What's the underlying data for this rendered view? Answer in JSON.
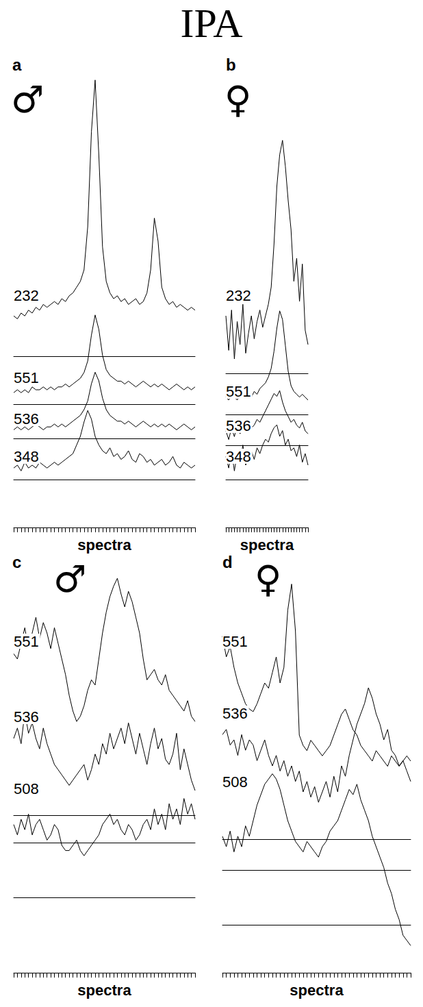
{
  "title": "IPA",
  "chart_data": [
    {
      "type": "line",
      "title": "a",
      "subtitle": "♂",
      "x_label": "spectra",
      "x": [
        0,
        1,
        2,
        3,
        4,
        5,
        6,
        7,
        8,
        9,
        10,
        11,
        12,
        13,
        14,
        15,
        16,
        17,
        18,
        19,
        20,
        21,
        22,
        23,
        24,
        25,
        26,
        27,
        28,
        29,
        30,
        31,
        32,
        33,
        34,
        35,
        36,
        37,
        38,
        39,
        40,
        41,
        42,
        43,
        44,
        45,
        46,
        47,
        48,
        49
      ],
      "xlim": [
        0,
        49
      ],
      "xticks": [
        0,
        1,
        2,
        3,
        4,
        5,
        6,
        7,
        8,
        9,
        10,
        11,
        12,
        13,
        14,
        15,
        16,
        17,
        18,
        19,
        20,
        21,
        22,
        23,
        24,
        25,
        26,
        27,
        28,
        29,
        30,
        31,
        32,
        33,
        34,
        35,
        36,
        37,
        38,
        39,
        40,
        41,
        42,
        43,
        44,
        45,
        46,
        47,
        48,
        49
      ],
      "ylim": [
        0,
        100
      ],
      "tick_labels": false,
      "grid": false,
      "color": "#000000",
      "series": [
        {
          "name": "232",
          "values": [
            14,
            13,
            15,
            14,
            16,
            15,
            17,
            16,
            18,
            17,
            18,
            19,
            18,
            20,
            19,
            21,
            22,
            24,
            26,
            30,
            45,
            78,
            96,
            70,
            38,
            26,
            22,
            20,
            21,
            19,
            20,
            18,
            19,
            20,
            18,
            19,
            22,
            30,
            48,
            40,
            24,
            20,
            18,
            19,
            17,
            18,
            17,
            16,
            17,
            16
          ]
        },
        {
          "name": "551",
          "values": [
            4,
            5,
            4,
            5,
            4,
            6,
            5,
            5,
            6,
            5,
            6,
            5,
            6,
            6,
            7,
            6,
            7,
            8,
            9,
            11,
            15,
            24,
            31,
            26,
            17,
            12,
            10,
            9,
            8,
            8,
            7,
            8,
            7,
            6,
            7,
            8,
            7,
            6,
            7,
            6,
            7,
            6,
            5,
            6,
            7,
            6,
            5,
            6,
            5,
            6
          ]
        },
        {
          "name": "536",
          "values": [
            3,
            4,
            3,
            4,
            3,
            4,
            5,
            4,
            3,
            4,
            4,
            5,
            4,
            5,
            4,
            5,
            6,
            7,
            8,
            10,
            13,
            19,
            23,
            20,
            14,
            10,
            8,
            7,
            6,
            6,
            5,
            6,
            5,
            4,
            5,
            6,
            5,
            4,
            5,
            4,
            5,
            4,
            5,
            4,
            3,
            4,
            5,
            4,
            3,
            4
          ]
        },
        {
          "name": "348",
          "values": [
            4,
            5,
            3,
            6,
            4,
            5,
            4,
            6,
            5,
            4,
            5,
            6,
            5,
            6,
            7,
            8,
            9,
            12,
            15,
            20,
            24,
            21,
            15,
            12,
            10,
            9,
            11,
            8,
            9,
            7,
            8,
            10,
            7,
            6,
            9,
            8,
            6,
            7,
            5,
            6,
            7,
            5,
            6,
            8,
            5,
            4,
            6,
            5,
            4,
            5
          ]
        }
      ]
    },
    {
      "type": "line",
      "title": "b",
      "subtitle": "♀",
      "x_label": "spectra",
      "x": [
        0,
        1,
        2,
        3,
        4,
        5,
        6,
        7,
        8,
        9,
        10,
        11,
        12,
        13,
        14,
        15,
        16,
        17,
        18,
        19,
        20,
        21,
        22,
        23,
        24,
        25,
        26,
        27,
        28,
        29
      ],
      "xlim": [
        0,
        29
      ],
      "xticks": [
        0,
        1,
        2,
        3,
        4,
        5,
        6,
        7,
        8,
        9,
        10,
        11,
        12,
        13,
        14,
        15,
        16,
        17,
        18,
        19,
        20,
        21,
        22,
        23,
        24,
        25,
        26,
        27,
        28,
        29
      ],
      "ylim": [
        0,
        100
      ],
      "tick_labels": false,
      "grid": false,
      "color": "#000000",
      "series": [
        {
          "name": "232",
          "values": [
            20,
            8,
            22,
            5,
            18,
            10,
            24,
            7,
            14,
            20,
            12,
            18,
            22,
            16,
            20,
            24,
            30,
            45,
            65,
            76,
            81,
            72,
            60,
            50,
            32,
            40,
            25,
            38,
            15,
            10
          ]
        },
        {
          "name": "551",
          "values": [
            6,
            5,
            7,
            6,
            5,
            7,
            6,
            8,
            7,
            6,
            8,
            7,
            9,
            10,
            11,
            13,
            16,
            22,
            30,
            36,
            33,
            24,
            15,
            10,
            8,
            7,
            6,
            7,
            6,
            5
          ]
        },
        {
          "name": "536",
          "values": [
            5,
            2,
            6,
            3,
            7,
            4,
            6,
            5,
            8,
            6,
            7,
            9,
            8,
            10,
            12,
            14,
            16,
            18,
            17,
            19,
            15,
            12,
            10,
            8,
            9,
            7,
            6,
            8,
            5,
            4
          ]
        },
        {
          "name": "348",
          "values": [
            8,
            4,
            10,
            3,
            9,
            6,
            12,
            5,
            8,
            10,
            7,
            11,
            9,
            12,
            14,
            13,
            16,
            18,
            19,
            15,
            17,
            12,
            14,
            10,
            11,
            8,
            12,
            6,
            9,
            5
          ]
        }
      ]
    },
    {
      "type": "line",
      "title": "c",
      "subtitle": "♂",
      "x_label": "spectra",
      "x": [
        0,
        1,
        2,
        3,
        4,
        5,
        6,
        7,
        8,
        9,
        10,
        11,
        12,
        13,
        14,
        15,
        16,
        17,
        18,
        19,
        20,
        21,
        22,
        23,
        24,
        25,
        26,
        27,
        28,
        29,
        30,
        31,
        32,
        33,
        34,
        35,
        36,
        37,
        38,
        39,
        40,
        41,
        42,
        43,
        44,
        45,
        46,
        47,
        48,
        49
      ],
      "xlim": [
        0,
        49
      ],
      "xticks": [
        0,
        1,
        2,
        3,
        4,
        5,
        6,
        7,
        8,
        9,
        10,
        11,
        12,
        13,
        14,
        15,
        16,
        17,
        18,
        19,
        20,
        21,
        22,
        23,
        24,
        25,
        26,
        27,
        28,
        29,
        30,
        31,
        32,
        33,
        34,
        35,
        36,
        37,
        38,
        39,
        40,
        41,
        42,
        43,
        44,
        45,
        46,
        47,
        48,
        49
      ],
      "ylim": [
        0,
        100
      ],
      "tick_labels": false,
      "grid": false,
      "color": "#000000",
      "series": [
        {
          "name": "551",
          "values": [
            62,
            60,
            66,
            72,
            64,
            70,
            76,
            68,
            74,
            70,
            64,
            72,
            66,
            60,
            54,
            46,
            40,
            36,
            38,
            42,
            48,
            52,
            50,
            60,
            70,
            78,
            84,
            88,
            91,
            85,
            80,
            86,
            82,
            76,
            70,
            60,
            52,
            54,
            56,
            52,
            50,
            54,
            48,
            46,
            44,
            42,
            40,
            44,
            38,
            36
          ]
        },
        {
          "name": "536",
          "values": [
            40,
            44,
            38,
            50,
            42,
            46,
            40,
            36,
            44,
            38,
            34,
            30,
            28,
            26,
            24,
            22,
            24,
            26,
            28,
            30,
            24,
            28,
            34,
            30,
            38,
            34,
            42,
            36,
            40,
            44,
            38,
            46,
            40,
            34,
            42,
            36,
            30,
            38,
            44,
            36,
            40,
            32,
            30,
            34,
            42,
            28,
            36,
            30,
            24,
            20
          ]
        },
        {
          "name": "508",
          "values": [
            28,
            24,
            30,
            26,
            32,
            24,
            28,
            30,
            26,
            22,
            24,
            28,
            26,
            20,
            18,
            18,
            20,
            22,
            18,
            16,
            18,
            20,
            22,
            24,
            28,
            30,
            32,
            28,
            30,
            26,
            24,
            28,
            26,
            22,
            24,
            28,
            30,
            26,
            34,
            28,
            32,
            26,
            36,
            30,
            34,
            28,
            38,
            32,
            36,
            30
          ]
        }
      ]
    },
    {
      "type": "line",
      "title": "d",
      "subtitle": "♀",
      "x_label": "spectra",
      "x": [
        0,
        1,
        2,
        3,
        4,
        5,
        6,
        7,
        8,
        9,
        10,
        11,
        12,
        13,
        14,
        15,
        16,
        17,
        18,
        19,
        20,
        21,
        22,
        23,
        24,
        25,
        26,
        27,
        28,
        29,
        30,
        31,
        32,
        33,
        34,
        35,
        36,
        37,
        38,
        39,
        40,
        41,
        42,
        43,
        44,
        45,
        46,
        47,
        48,
        49
      ],
      "xlim": [
        0,
        49
      ],
      "xticks": [
        0,
        1,
        2,
        3,
        4,
        5,
        6,
        7,
        8,
        9,
        10,
        11,
        12,
        13,
        14,
        15,
        16,
        17,
        18,
        19,
        20,
        21,
        22,
        23,
        24,
        25,
        26,
        27,
        28,
        29,
        30,
        31,
        32,
        33,
        34,
        35,
        36,
        37,
        38,
        39,
        40,
        41,
        42,
        43,
        44,
        45,
        46,
        47,
        48,
        49
      ],
      "ylim": [
        -10,
        100
      ],
      "tick_labels": false,
      "grid": false,
      "color": "#000000",
      "series": [
        {
          "name": "551",
          "values": [
            78,
            70,
            74,
            66,
            60,
            56,
            52,
            50,
            49,
            52,
            56,
            60,
            58,
            64,
            70,
            60,
            66,
            88,
            98,
            80,
            40,
            36,
            34,
            38,
            36,
            34,
            32,
            34,
            36,
            40,
            44,
            48,
            50,
            46,
            42,
            40,
            36,
            34,
            32,
            30,
            34,
            32,
            30,
            28,
            32,
            30,
            28,
            30,
            32,
            30
          ]
        },
        {
          "name": "536",
          "values": [
            52,
            54,
            48,
            50,
            44,
            52,
            46,
            50,
            48,
            42,
            46,
            50,
            44,
            40,
            44,
            38,
            42,
            36,
            40,
            34,
            38,
            30,
            34,
            28,
            32,
            26,
            30,
            34,
            28,
            36,
            30,
            40,
            36,
            44,
            50,
            56,
            60,
            64,
            70,
            66,
            60,
            56,
            50,
            54,
            46,
            44,
            40,
            42,
            38,
            34
          ]
        },
        {
          "name": "508",
          "values": [
            34,
            30,
            36,
            28,
            34,
            30,
            38,
            34,
            40,
            46,
            50,
            54,
            56,
            58,
            56,
            52,
            46,
            40,
            36,
            32,
            30,
            28,
            32,
            30,
            28,
            26,
            30,
            32,
            36,
            38,
            40,
            44,
            48,
            52,
            50,
            54,
            48,
            44,
            40,
            34,
            30,
            26,
            22,
            16,
            12,
            6,
            2,
            -4,
            -6,
            -8
          ]
        }
      ]
    }
  ]
}
